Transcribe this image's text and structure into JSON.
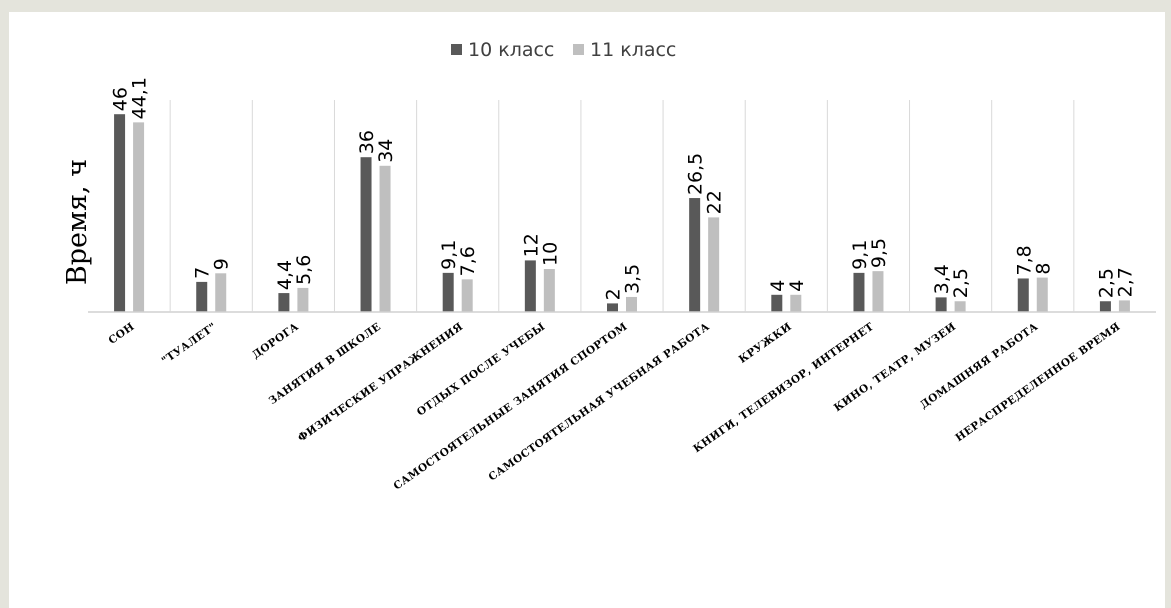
{
  "chart_data": {
    "type": "bar",
    "title": "",
    "ylabel": "Время, ч",
    "xlabel": "",
    "ylim": [
      0,
      50
    ],
    "grid": false,
    "legend_position": "top",
    "categories": [
      "СОН",
      "\"ТУАЛЕТ\"",
      "ДОРОГА",
      "ЗАНЯТИЯ В ШКОЛЕ",
      "ФИЗИЧЕСКИЕ УПРАЖНЕНИЯ",
      "ОТДЫХ ПОСЛЕ УЧЕБЫ",
      "САМОСТОЯТЕЛЬНЫЕ ЗАНЯТИЯ СПОРТОМ",
      "САМОСТОЯТЕЛЬНАЯ УЧЕБНАЯ РАБОТА",
      "КРУЖКИ",
      "КНИГИ, ТЕЛЕВИЗОР, ИНТЕРНЕТ",
      "КИНО, ТЕАТР, МУЗЕИ",
      "ДОМАШНЯЯ РАБОТА",
      "НЕРАСПРЕДЕЛЕННОЕ ВРЕМЯ"
    ],
    "series": [
      {
        "name": "10 класс",
        "color": "#595959",
        "values": [
          46,
          7,
          4.4,
          36,
          9.1,
          12,
          2,
          26.5,
          4,
          9.1,
          3.4,
          7.8,
          2.5
        ],
        "labels": [
          "46",
          "7",
          "4,4",
          "36",
          "9,1",
          "12",
          "2",
          "26,5",
          "4",
          "9,1",
          "3,4",
          "7,8",
          "2,5"
        ]
      },
      {
        "name": "11 класс",
        "color": "#bfbfbf",
        "values": [
          44.1,
          9,
          5.6,
          34,
          7.6,
          10,
          3.5,
          22,
          4,
          9.5,
          2.5,
          8,
          2.7
        ],
        "labels": [
          "44,1",
          "9",
          "5,6",
          "34",
          "7,6",
          "10",
          "3,5",
          "22",
          "4",
          "9,5",
          "2,5",
          "8",
          "2,7"
        ]
      }
    ]
  }
}
